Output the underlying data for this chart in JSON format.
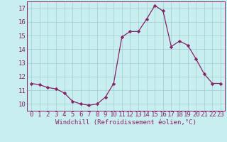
{
  "x": [
    0,
    1,
    2,
    3,
    4,
    5,
    6,
    7,
    8,
    9,
    10,
    11,
    12,
    13,
    14,
    15,
    16,
    17,
    18,
    19,
    20,
    21,
    22,
    23
  ],
  "y": [
    11.5,
    11.4,
    11.2,
    11.1,
    10.8,
    10.2,
    10.0,
    9.9,
    10.0,
    10.5,
    11.5,
    14.9,
    15.3,
    15.3,
    16.2,
    17.2,
    16.8,
    14.2,
    14.6,
    14.3,
    13.3,
    12.2,
    11.5,
    11.5
  ],
  "line_color": "#882266",
  "marker": "D",
  "marker_size": 2.2,
  "bg_color": "#c8eef0",
  "grid_color": "#a0ccd0",
  "xlabel": "Windchill (Refroidissement éolien,°C)",
  "xlim": [
    -0.5,
    23.5
  ],
  "ylim": [
    9.5,
    17.5
  ],
  "yticks": [
    10,
    11,
    12,
    13,
    14,
    15,
    16,
    17
  ],
  "xticks": [
    0,
    1,
    2,
    3,
    4,
    5,
    6,
    7,
    8,
    9,
    10,
    11,
    12,
    13,
    14,
    15,
    16,
    17,
    18,
    19,
    20,
    21,
    22,
    23
  ],
  "xtick_labels": [
    "0",
    "1",
    "2",
    "3",
    "4",
    "5",
    "6",
    "7",
    "8",
    "9",
    "10",
    "11",
    "12",
    "13",
    "14",
    "15",
    "16",
    "17",
    "18",
    "19",
    "20",
    "21",
    "22",
    "23"
  ],
  "font_family": "monospace",
  "tick_fontsize": 6.5,
  "xlabel_fontsize": 6.5
}
